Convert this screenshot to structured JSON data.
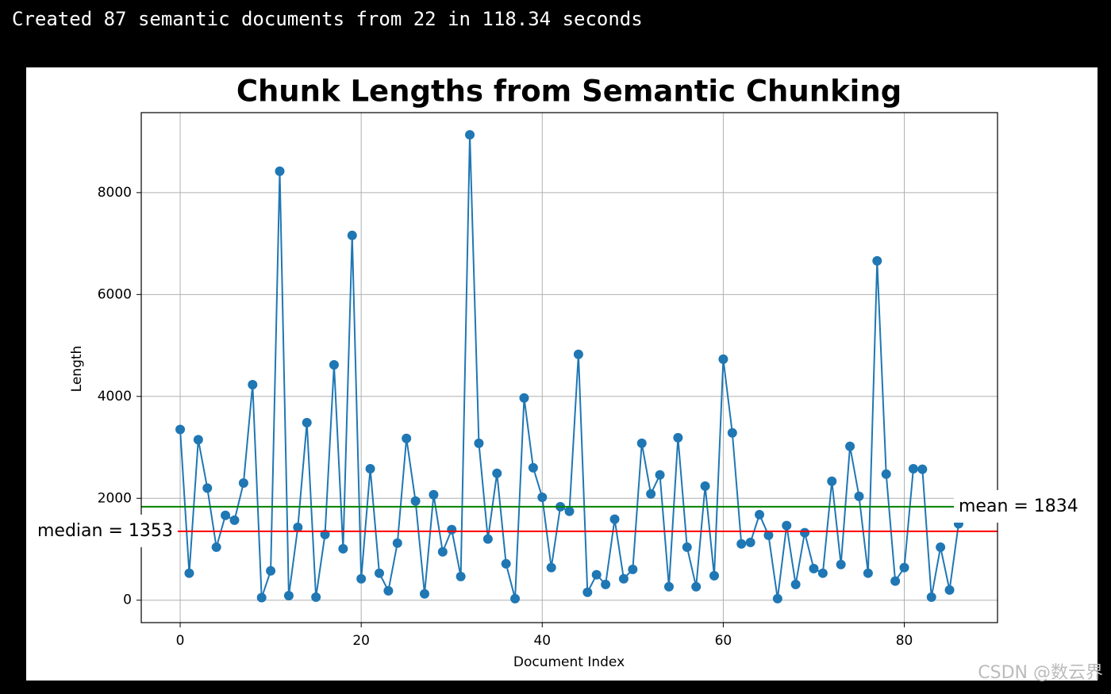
{
  "console_output": "Created 87 semantic documents from 22 in 118.34 seconds",
  "watermark": "CSDN @数云界",
  "chart_data": {
    "type": "line",
    "title": "Chunk Lengths from Semantic Chunking",
    "xlabel": "Document Index",
    "ylabel": "Length",
    "x": [
      0,
      1,
      2,
      3,
      4,
      5,
      6,
      7,
      8,
      9,
      10,
      11,
      12,
      13,
      14,
      15,
      16,
      17,
      18,
      19,
      20,
      21,
      22,
      23,
      24,
      25,
      26,
      27,
      28,
      29,
      30,
      31,
      32,
      33,
      34,
      35,
      36,
      37,
      38,
      39,
      40,
      41,
      42,
      43,
      44,
      45,
      46,
      47,
      48,
      49,
      50,
      51,
      52,
      53,
      54,
      55,
      56,
      57,
      58,
      59,
      60,
      61,
      62,
      63,
      64,
      65,
      66,
      67,
      68,
      69,
      70,
      71,
      72,
      73,
      74,
      75,
      76,
      77,
      78,
      79,
      80,
      81,
      82,
      83,
      84,
      85,
      86
    ],
    "series": [
      {
        "name": "Length",
        "color": "#1f77b4",
        "values": [
          3350,
          530,
          3150,
          2200,
          1040,
          1665,
          1570,
          2300,
          4230,
          50,
          575,
          8420,
          90,
          1430,
          3485,
          60,
          1290,
          4620,
          1010,
          7160,
          420,
          2580,
          530,
          185,
          1120,
          3175,
          1945,
          125,
          2070,
          950,
          1385,
          465,
          9135,
          3080,
          1200,
          2490,
          715,
          30,
          3970,
          2600,
          2020,
          640,
          1835,
          1745,
          4825,
          155,
          500,
          310,
          1590,
          420,
          605,
          3080,
          2085,
          2460,
          265,
          3190,
          1040,
          265,
          2240,
          480,
          4730,
          3285,
          1105,
          1135,
          1680,
          1275,
          30,
          1465,
          310,
          1325,
          620,
          530,
          2335,
          700,
          3020,
          2040,
          530,
          6660,
          2475,
          375,
          640,
          2580,
          2570,
          60,
          1040,
          200,
          1500
        ]
      }
    ],
    "reference_lines": [
      {
        "value": 1834,
        "label": "mean = 1834",
        "color": "green"
      },
      {
        "value": 1353,
        "label": "median = 1353",
        "color": "red"
      }
    ],
    "xlim": [
      -4.3,
      90.3
    ],
    "ylim": [
      -440,
      9570
    ],
    "xticks": [
      0,
      20,
      40,
      60,
      80
    ],
    "yticks": [
      0,
      2000,
      4000,
      6000,
      8000
    ],
    "grid": true
  }
}
